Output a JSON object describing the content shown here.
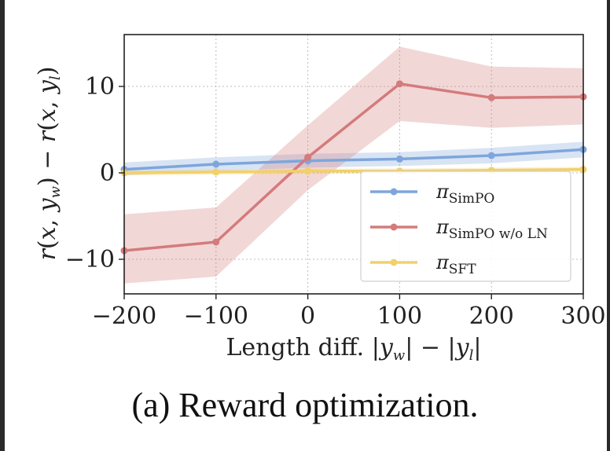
{
  "caption": "(a) Reward optimization.",
  "chart_data": {
    "type": "line",
    "xlabel": "Length diff. |y_w| − |y_l|",
    "ylabel": "r(x, y_w) − r(x, y_l)",
    "xlim": [
      -200,
      300
    ],
    "ylim": [
      -14,
      16
    ],
    "xticks": [
      -200,
      -100,
      0,
      100,
      200,
      300
    ],
    "xtick_labels": [
      "−200",
      "−100",
      "0",
      "100",
      "200",
      "300"
    ],
    "yticks": [
      -10,
      0,
      10
    ],
    "ytick_labels": [
      "−10",
      "0",
      "10"
    ],
    "grid": true,
    "legend_position": "lower-right",
    "x": [
      -200,
      -100,
      0,
      100,
      200,
      300
    ],
    "series": [
      {
        "name": "π_SimPO",
        "legend_main": "π",
        "legend_sub": "SimPO",
        "color": "#7ea6dc",
        "values": [
          0.4,
          1.0,
          1.4,
          1.6,
          2.0,
          2.7
        ],
        "lower": [
          -0.3,
          0.2,
          0.6,
          0.8,
          1.1,
          1.8
        ],
        "upper": [
          1.2,
          1.8,
          2.2,
          2.4,
          2.9,
          3.6
        ]
      },
      {
        "name": "π_SimPO w/o LN",
        "legend_main": "π",
        "legend_sub": "SimPO w/o LN",
        "color": "#d47b7b",
        "values": [
          -9.0,
          -8.0,
          1.8,
          10.3,
          8.7,
          8.8
        ],
        "lower": [
          -12.8,
          -12.0,
          -2.0,
          6.0,
          5.2,
          5.6
        ],
        "upper": [
          -4.8,
          -4.0,
          5.5,
          14.6,
          12.3,
          12.1
        ]
      },
      {
        "name": "π_SFT",
        "legend_main": "π",
        "legend_sub": "SFT",
        "color": "#f2d06a",
        "values": [
          0.0,
          0.1,
          0.2,
          0.2,
          0.3,
          0.4
        ],
        "lower": [
          -0.3,
          -0.2,
          -0.1,
          -0.1,
          0.0,
          0.1
        ],
        "upper": [
          0.3,
          0.4,
          0.5,
          0.5,
          0.6,
          0.7
        ]
      }
    ]
  }
}
